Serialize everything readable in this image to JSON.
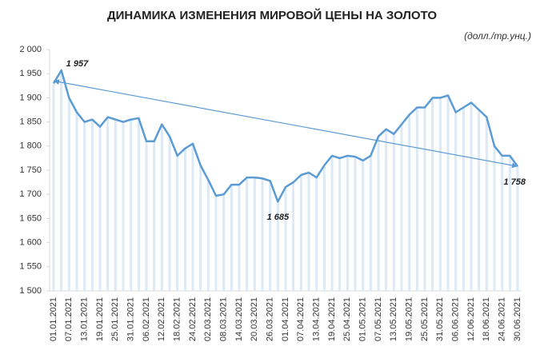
{
  "chart_data": {
    "type": "line",
    "title": "ДИНАМИКА ИЗМЕНЕНИЯ МИРОВОЙ ЦЕНЫ НА ЗОЛОТО",
    "unit_label": "(долл./тр.унц.)",
    "categories": [
      "01.01.2021",
      null,
      "07.01.2021",
      null,
      "13.01.2021",
      null,
      "19.01.2021",
      null,
      "25.01.2021",
      null,
      "31.01.2021",
      null,
      "06.02.2021",
      null,
      "12.02.2021",
      null,
      "18.02.2021",
      null,
      "24.02.2021",
      null,
      "02.03.2021",
      null,
      "08.03.2021",
      null,
      "14.03.2021",
      null,
      "20.03.2021",
      null,
      "26.03.2021",
      null,
      "01.04.2021",
      null,
      "07.04.2021",
      null,
      "13.04.2021",
      null,
      "19.04.2021",
      null,
      "25.04.2021",
      null,
      "01.05.2021",
      null,
      "07.05.2021",
      null,
      "13.05.2021",
      null,
      "19.05.2021",
      null,
      "25.05.2021",
      null,
      "31.05.2021",
      null,
      "06.06.2021",
      null,
      "12.06.2021",
      null,
      "18.06.2021",
      null,
      "24.06.2021",
      null,
      "30.06.2021"
    ],
    "series": [
      {
        "color": "#5b9bd5",
        "values": [
          1930,
          1957,
          1900,
          1870,
          1850,
          1855,
          1840,
          1860,
          1855,
          1850,
          1855,
          1858,
          1810,
          1810,
          1845,
          1820,
          1780,
          1795,
          1805,
          1760,
          1730,
          1697,
          1700,
          1720,
          1720,
          1735,
          1735,
          1733,
          1728,
          1685,
          1715,
          1725,
          1740,
          1745,
          1735,
          1760,
          1780,
          1775,
          1780,
          1778,
          1770,
          1780,
          1820,
          1835,
          1825,
          1845,
          1865,
          1880,
          1880,
          1900,
          1900,
          1905,
          1870,
          1880,
          1890,
          1875,
          1860,
          1800,
          1780,
          1780,
          1758
        ],
        "value_labels": [
          null,
          "1 957",
          null,
          null,
          null,
          null,
          null,
          null,
          null,
          null,
          null,
          null,
          null,
          null,
          null,
          null,
          null,
          null,
          null,
          null,
          null,
          null,
          null,
          null,
          null,
          null,
          null,
          null,
          null,
          "1 685",
          null,
          null,
          null,
          null,
          null,
          null,
          null,
          null,
          null,
          null,
          null,
          null,
          null,
          null,
          null,
          null,
          null,
          null,
          null,
          null,
          null,
          null,
          null,
          null,
          null,
          null,
          null,
          null,
          null,
          null,
          "1 758"
        ]
      }
    ],
    "trendline": {
      "color": "#5b9bd5",
      "values": [
        1935,
        1758
      ]
    },
    "ylim": [
      1500,
      2000
    ],
    "yticks": [
      {
        "value": 1500,
        "label": "1 500"
      },
      {
        "value": 1550,
        "label": "1 550"
      },
      {
        "value": 1600,
        "label": "1 600"
      },
      {
        "value": 1650,
        "label": "1 650"
      },
      {
        "value": 1700,
        "label": "1 700"
      },
      {
        "value": 1750,
        "label": "1 750"
      },
      {
        "value": 1800,
        "label": "1 800"
      },
      {
        "value": 1850,
        "label": "1 850"
      },
      {
        "value": 1900,
        "label": "1 900"
      },
      {
        "value": 1950,
        "label": "1 950"
      },
      {
        "value": 2000,
        "label": "2 000"
      }
    ],
    "grid": false
  }
}
